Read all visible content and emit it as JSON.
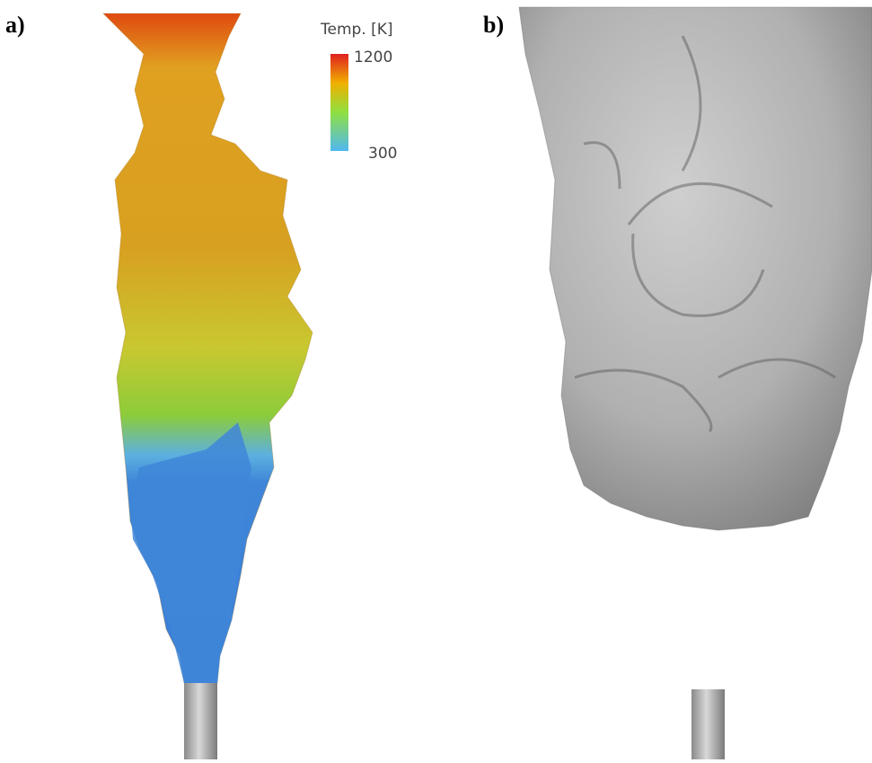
{
  "panels": [
    {
      "label": "a)",
      "colorbar": {
        "title": "Temp. [K]",
        "max": 1200,
        "min": 300
      }
    },
    {
      "label": "b)"
    }
  ]
}
